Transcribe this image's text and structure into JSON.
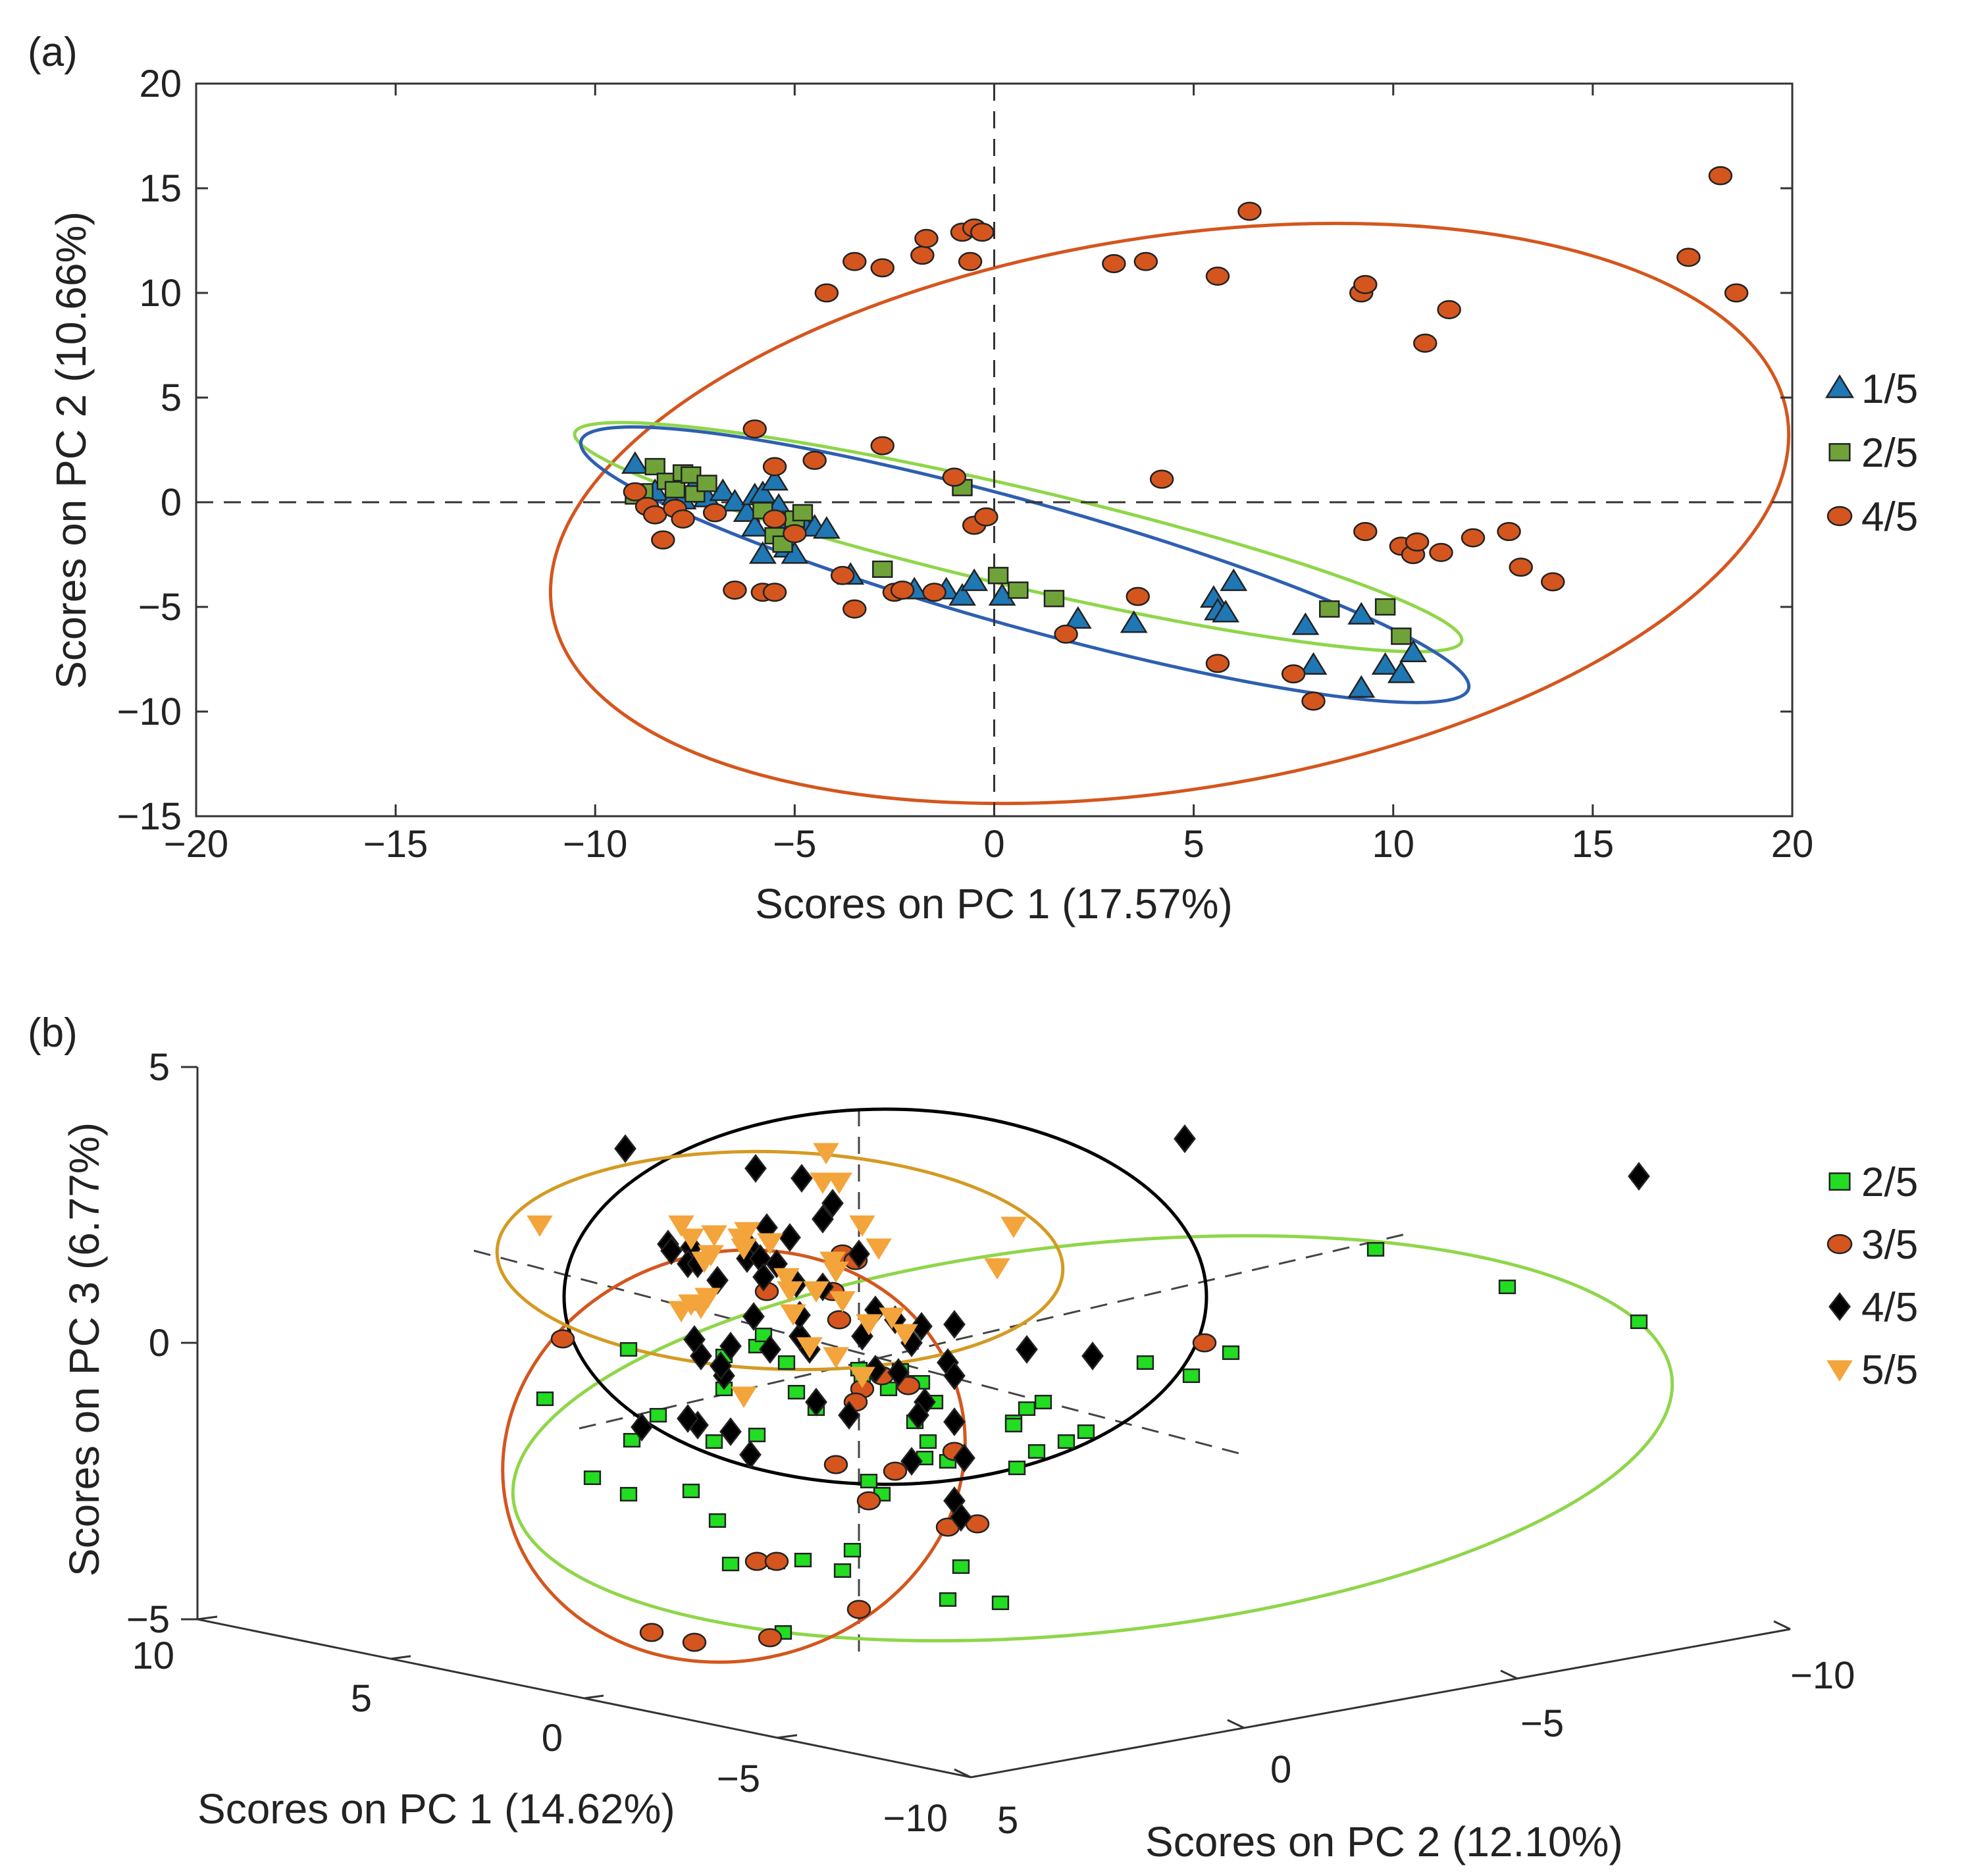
{
  "chart_data": [
    {
      "panel_label": "(a)",
      "type": "scatter",
      "xlabel": "Scores on PC 1 (17.57%)",
      "ylabel": "Scores on PC 2 (10.66%)",
      "xlim": [
        -20,
        20
      ],
      "ylim": [
        -15,
        20
      ],
      "xticks": [
        "−20",
        "−15",
        "−10",
        "−5",
        "0",
        "5",
        "10",
        "15",
        "20"
      ],
      "yticks": [
        "−15",
        "−10",
        "−5",
        "0",
        "5",
        "10",
        "15",
        "20"
      ],
      "zero_lines": true,
      "legend_position": "right",
      "series": [
        {
          "name": "1/5",
          "marker": "triangle-up",
          "color": "#1f77b4",
          "points": [
            [
              -9,
              1.8
            ],
            [
              -8.5,
              0.5
            ],
            [
              -8,
              0.3
            ],
            [
              -7.8,
              0.1
            ],
            [
              -7.5,
              0.8
            ],
            [
              -7.2,
              0.2
            ],
            [
              -6.8,
              0.5
            ],
            [
              -6.5,
              0
            ],
            [
              -6.2,
              -0.5
            ],
            [
              -6,
              0.3
            ],
            [
              -5.8,
              0.4
            ],
            [
              -5.5,
              1
            ],
            [
              -5.4,
              -0.2
            ],
            [
              -5.3,
              -1
            ],
            [
              -5.2,
              -2.2
            ],
            [
              -5,
              -2.5
            ],
            [
              -4.8,
              -1
            ],
            [
              -4.5,
              -1.2
            ],
            [
              -6,
              -1.2
            ],
            [
              -5.8,
              -2.5
            ],
            [
              -4.2,
              -1.3
            ],
            [
              -3.6,
              -3.5
            ],
            [
              -2,
              -4.2
            ],
            [
              -1.2,
              -4.2
            ],
            [
              -0.8,
              -4.5
            ],
            [
              -0.5,
              -3.8
            ],
            [
              0.2,
              -4.5
            ],
            [
              2.1,
              -5.6
            ],
            [
              3.5,
              -5.8
            ],
            [
              5.5,
              -4.6
            ],
            [
              5.6,
              -5.2
            ],
            [
              5.8,
              -5.3
            ],
            [
              6,
              -3.8
            ],
            [
              7.8,
              -5.9
            ],
            [
              8,
              -7.8
            ],
            [
              9.2,
              -5.4
            ],
            [
              9.2,
              -8.9
            ],
            [
              9.8,
              -7.8
            ],
            [
              10.2,
              -8.2
            ],
            [
              10.5,
              -7.2
            ]
          ]
        },
        {
          "name": "2/5",
          "marker": "square",
          "color": "#6fa33a",
          "points": [
            [
              -9,
              0.3
            ],
            [
              -8.8,
              0.5
            ],
            [
              -8.5,
              1.7
            ],
            [
              -8.2,
              1
            ],
            [
              -8,
              0.6
            ],
            [
              -7.8,
              1.4
            ],
            [
              -7.6,
              1.3
            ],
            [
              -7.5,
              0.4
            ],
            [
              -7.2,
              0.9
            ],
            [
              -5.8,
              -0.4
            ],
            [
              -5.5,
              -1.6
            ],
            [
              -5.3,
              -2
            ],
            [
              -5,
              -0.8
            ],
            [
              -4.8,
              -0.5
            ],
            [
              -2.8,
              -3.2
            ],
            [
              -0.8,
              0.7
            ],
            [
              0.1,
              -3.5
            ],
            [
              0.6,
              -4.2
            ],
            [
              1.5,
              -4.6
            ],
            [
              8.4,
              -5.1
            ],
            [
              9.8,
              -5
            ],
            [
              10.2,
              -6.4
            ]
          ]
        },
        {
          "name": "4/5",
          "marker": "circle",
          "color": "#d4561e",
          "points": [
            [
              -9,
              0.5
            ],
            [
              -8.7,
              -0.2
            ],
            [
              -8.5,
              -0.6
            ],
            [
              -8.3,
              -1.8
            ],
            [
              -8,
              -0.3
            ],
            [
              -7.8,
              -0.8
            ],
            [
              -7,
              -0.5
            ],
            [
              -6.5,
              -4.2
            ],
            [
              -6,
              3.5
            ],
            [
              -5.8,
              -4.3
            ],
            [
              -5.5,
              -4.3
            ],
            [
              -5.5,
              1.7
            ],
            [
              -5.5,
              -0.8
            ],
            [
              -5,
              -1.5
            ],
            [
              -4.5,
              2
            ],
            [
              -4.2,
              10
            ],
            [
              -3.8,
              -3.5
            ],
            [
              -3.5,
              11.5
            ],
            [
              -3.5,
              -5.1
            ],
            [
              -2.8,
              11.2
            ],
            [
              -2.8,
              2.7
            ],
            [
              -2.5,
              -4.3
            ],
            [
              -2.3,
              -4.2
            ],
            [
              -1.8,
              11.8
            ],
            [
              -1.7,
              12.6
            ],
            [
              -1.5,
              -4.3
            ],
            [
              -1,
              1.2
            ],
            [
              -0.8,
              12.9
            ],
            [
              -0.6,
              11.5
            ],
            [
              -0.5,
              13.1
            ],
            [
              -0.5,
              -1.1
            ],
            [
              -0.2,
              -0.7
            ],
            [
              -0.3,
              12.9
            ],
            [
              1.8,
              -6.3
            ],
            [
              3,
              11.4
            ],
            [
              3.6,
              -4.5
            ],
            [
              3.8,
              11.5
            ],
            [
              4.2,
              1.1
            ],
            [
              5.6,
              10.8
            ],
            [
              5.6,
              -7.7
            ],
            [
              6.4,
              13.9
            ],
            [
              7.5,
              -8.2
            ],
            [
              8,
              -9.5
            ],
            [
              9.2,
              10
            ],
            [
              9.3,
              10.4
            ],
            [
              9.3,
              -1.4
            ],
            [
              10.2,
              -2.1
            ],
            [
              10.5,
              -2.5
            ],
            [
              10.6,
              -1.9
            ],
            [
              10.8,
              7.6
            ],
            [
              11.2,
              -2.4
            ],
            [
              11.4,
              9.2
            ],
            [
              12,
              -1.7
            ],
            [
              12.9,
              -1.4
            ],
            [
              13.2,
              -3.1
            ],
            [
              14,
              -3.8
            ],
            [
              17.4,
              11.7
            ],
            [
              18.2,
              15.6
            ],
            [
              18.6,
              10
            ]
          ]
        }
      ]
    },
    {
      "panel_label": "(b)",
      "type": "scatter",
      "xlabel": "Scores on PC 1 (14.62%)",
      "ylabel": "Scores on PC 2 (12.10%)",
      "zlabel": "Scores on PC 3 (6.77%)",
      "x_ticks": [
        "10",
        "5",
        "0",
        "−5",
        "−10"
      ],
      "y_ticks": [
        "5",
        "0",
        "−5",
        "−10"
      ],
      "z_ticks": [
        "5",
        "0",
        "−5"
      ],
      "legend_position": "right",
      "series": [
        {
          "name": "2/5",
          "marker": "square",
          "color": "#22dd22"
        },
        {
          "name": "3/5",
          "marker": "circle",
          "color": "#d4561e"
        },
        {
          "name": "4/5",
          "marker": "diamond",
          "color": "#000000"
        },
        {
          "name": "5/5",
          "marker": "triangle-down",
          "color": "#f3a43b"
        }
      ]
    }
  ]
}
